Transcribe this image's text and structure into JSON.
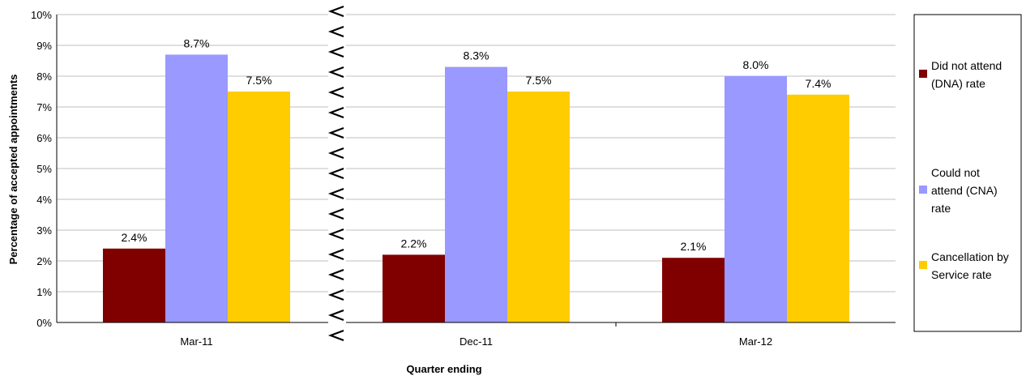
{
  "chart_data": {
    "type": "bar",
    "categories": [
      "Mar-11",
      "Dec-11",
      "Mar-12"
    ],
    "series": [
      {
        "name": "Did not attend (DNA) rate",
        "values": [
          2.4,
          2.2,
          2.1
        ],
        "labels": [
          "2.4%",
          "2.2%",
          "2.1%"
        ],
        "color": "#800000"
      },
      {
        "name": "Could not attend (CNA) rate",
        "values": [
          8.7,
          8.3,
          8.0
        ],
        "labels": [
          "8.7%",
          "8.3%",
          "8.0%"
        ],
        "color": "#9999ff"
      },
      {
        "name": "Cancellation by Service rate",
        "values": [
          7.5,
          7.5,
          7.4
        ],
        "labels": [
          "7.5%",
          "7.5%",
          "7.4%"
        ],
        "color": "#ffcc00"
      }
    ],
    "legend_lines": [
      [
        "Did not attend",
        "(DNA) rate"
      ],
      [
        "Could not",
        "attend (CNA)",
        "rate"
      ],
      [
        "Cancellation by",
        "Service rate"
      ]
    ],
    "xlabel": "Quarter ending",
    "ylabel": "Percentage of accepted appointments",
    "ylim": [
      0,
      10
    ],
    "yticks": [
      "0%",
      "1%",
      "2%",
      "3%",
      "4%",
      "5%",
      "6%",
      "7%",
      "8%",
      "9%",
      "10%"
    ],
    "grid": true,
    "axis_break": "between Mar-11 and Dec-11",
    "legend_position": "right"
  }
}
